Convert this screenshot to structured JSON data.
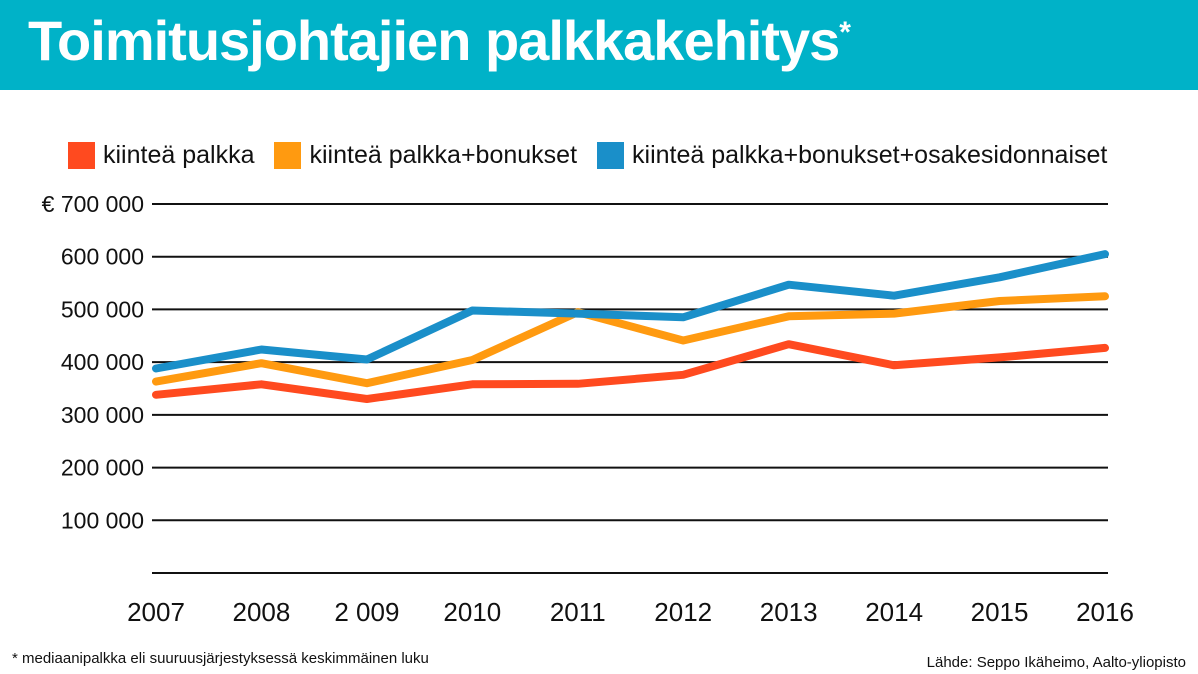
{
  "title": "Toimitusjohtajien palkkakehitys",
  "title_mark": "*",
  "footnote": "* mediaanipalkka eli suuruusjärjestyksessä keskimmäinen luku",
  "source": "Lähde: Seppo Ikäheimo, Aalto-yliopisto",
  "colors": {
    "header_bg": "#00b2c8",
    "series": [
      "#ff4a1f",
      "#ff9a10",
      "#1a8fc9"
    ]
  },
  "chart_data": {
    "type": "line",
    "title": "Toimitusjohtajien palkkakehitys",
    "xlabel": "",
    "ylabel": "",
    "x": [
      "2007",
      "2008",
      "2 009",
      "2010",
      "2011",
      "2012",
      "2013",
      "2014",
      "2015",
      "2016"
    ],
    "y_tick_labels": [
      "€ 700 000",
      "600 000",
      "500 000",
      "400 000",
      "300 000",
      "200 000",
      "100 000"
    ],
    "y_ticks": [
      700000,
      600000,
      500000,
      400000,
      300000,
      200000,
      100000,
      0
    ],
    "ylim": [
      0,
      700000
    ],
    "grid": true,
    "legend_position": "top",
    "series": [
      {
        "name": "kiinteä palkka",
        "color": "#ff4a1f",
        "values": [
          338000,
          358000,
          330000,
          358000,
          359000,
          376000,
          434000,
          394000,
          409000,
          427000
        ]
      },
      {
        "name": "kiinteä palkka+bonukset",
        "color": "#ff9a10",
        "values": [
          363000,
          398000,
          360000,
          404000,
          495000,
          441000,
          487000,
          492000,
          516000,
          525000
        ]
      },
      {
        "name": "kiinteä palkka+bonukset+osakesidonnaiset",
        "color": "#1a8fc9",
        "values": [
          388000,
          424000,
          405000,
          498000,
          492000,
          485000,
          547000,
          526000,
          561000,
          605000
        ]
      }
    ]
  }
}
